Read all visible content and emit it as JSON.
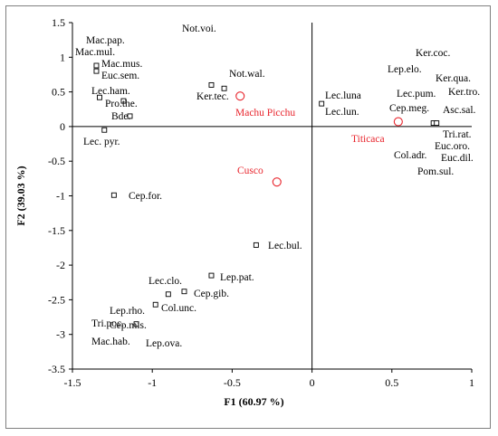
{
  "chart_data": {
    "type": "scatter",
    "title": "",
    "xlabel": "F1 (60.97 %)",
    "ylabel": "F2 (39.03 %)",
    "xlim": [
      -1.5,
      1
    ],
    "ylim": [
      -3.5,
      1.5
    ],
    "xticks": [
      -1.5,
      -1,
      -0.5,
      0,
      0.5,
      1
    ],
    "yticks": [
      1.5,
      1,
      0.5,
      0,
      -0.5,
      -1,
      -1.5,
      -2,
      -2.5,
      -3,
      -3.5
    ],
    "xtick_labels": [
      "-1.5",
      "-1",
      "-0.5",
      "0",
      "0.5",
      "1"
    ],
    "ytick_labels": [
      "1.5",
      "1",
      "0.5",
      "0",
      "-0.5",
      "-1",
      "-1.5",
      "-2",
      "-2.5",
      "-3",
      "-3.5"
    ],
    "grid": false,
    "colors": {
      "species": "#000000",
      "sites": "#e8242c",
      "axes": "#000000",
      "zero_lines": "#000000"
    },
    "species": [
      {
        "label": "Mac.pap.",
        "x": -1.35,
        "y": 0.88
      },
      {
        "label": "Mac.mul.",
        "x": -1.35,
        "y": 0.88
      },
      {
        "label": "Mac.mus.",
        "x": -1.35,
        "y": 0.85
      },
      {
        "label": "Euc.sem.",
        "x": -1.35,
        "y": 0.8
      },
      {
        "label": "Lec.ham.",
        "x": -1.33,
        "y": 0.42
      },
      {
        "label": "Pro.the.",
        "x": -1.18,
        "y": 0.37
      },
      {
        "label": "Bde.",
        "x": -1.14,
        "y": 0.15
      },
      {
        "label": "Lec. pyr.",
        "x": -1.3,
        "y": -0.05
      },
      {
        "label": "Not.voi.",
        "x": -0.55,
        "y": 0.55
      },
      {
        "label": "Not.wal.",
        "x": -0.55,
        "y": 0.55
      },
      {
        "label": "Ker.tec.",
        "x": -0.63,
        "y": 0.6
      },
      {
        "label": "Cep.for.",
        "x": -1.24,
        "y": -0.99
      },
      {
        "label": "Lec.bul.",
        "x": -0.35,
        "y": -1.71
      },
      {
        "label": "Lec.clo.",
        "x": -0.9,
        "y": -2.42
      },
      {
        "label": "Lep.pat.",
        "x": -0.63,
        "y": -2.15
      },
      {
        "label": "Cep.gib.",
        "x": -0.8,
        "y": -2.38
      },
      {
        "label": "Col.unc.",
        "x": -0.98,
        "y": -2.57
      },
      {
        "label": "Lep.rho.",
        "x": -0.98,
        "y": -2.57
      },
      {
        "label": "Tri.poc.",
        "x": -1.1,
        "y": -2.85
      },
      {
        "label": "Cep.mis.",
        "x": -1.1,
        "y": -2.85
      },
      {
        "label": "Mac.hab.",
        "x": -1.1,
        "y": -2.85
      },
      {
        "label": "Lep.ova.",
        "x": -1.1,
        "y": -2.85
      },
      {
        "label": "Lec.luna",
        "x": 0.06,
        "y": 0.33
      },
      {
        "label": "Lec.lun.",
        "x": 0.06,
        "y": 0.33
      },
      {
        "label": "Ker.coc.",
        "x": 0.76,
        "y": 0.05
      },
      {
        "label": "Lep.elo.",
        "x": 0.76,
        "y": 0.05
      },
      {
        "label": "Ker.qua.",
        "x": 0.76,
        "y": 0.05
      },
      {
        "label": "Lec.pum.",
        "x": 0.76,
        "y": 0.05
      },
      {
        "label": "Ker.tro.",
        "x": 0.76,
        "y": 0.05
      },
      {
        "label": "Cep.meg.",
        "x": 0.76,
        "y": 0.05
      },
      {
        "label": "Asc.sal.",
        "x": 0.78,
        "y": 0.05
      },
      {
        "label": "Tri.rat.",
        "x": 0.78,
        "y": 0.05
      },
      {
        "label": "Euc.oro.",
        "x": 0.78,
        "y": 0.05
      },
      {
        "label": "Col.adr.",
        "x": 0.78,
        "y": 0.05
      },
      {
        "label": "Euc.dil.",
        "x": 0.78,
        "y": 0.05
      },
      {
        "label": "Pom.sul.",
        "x": 0.78,
        "y": 0.05
      }
    ],
    "markers": [
      {
        "x": -1.35,
        "y": 0.88
      },
      {
        "x": -1.35,
        "y": 0.8
      },
      {
        "x": -1.33,
        "y": 0.42
      },
      {
        "x": -1.18,
        "y": 0.37
      },
      {
        "x": -1.14,
        "y": 0.15
      },
      {
        "x": -1.3,
        "y": -0.05
      },
      {
        "x": -0.63,
        "y": 0.6
      },
      {
        "x": -0.55,
        "y": 0.55
      },
      {
        "x": -1.24,
        "y": -0.99
      },
      {
        "x": -0.35,
        "y": -1.71
      },
      {
        "x": -0.63,
        "y": -2.15
      },
      {
        "x": -0.9,
        "y": -2.42
      },
      {
        "x": -0.8,
        "y": -2.38
      },
      {
        "x": -0.98,
        "y": -2.57
      },
      {
        "x": -1.1,
        "y": -2.85
      },
      {
        "x": 0.06,
        "y": 0.33
      },
      {
        "x": 0.76,
        "y": 0.05
      },
      {
        "x": 0.78,
        "y": 0.05
      }
    ],
    "sites": [
      {
        "label": "Machu Picchu",
        "x": -0.45,
        "y": 0.44
      },
      {
        "label": "Cusco",
        "x": -0.22,
        "y": -0.8
      },
      {
        "label": "Titicaca",
        "x": 0.54,
        "y": 0.07
      }
    ]
  }
}
